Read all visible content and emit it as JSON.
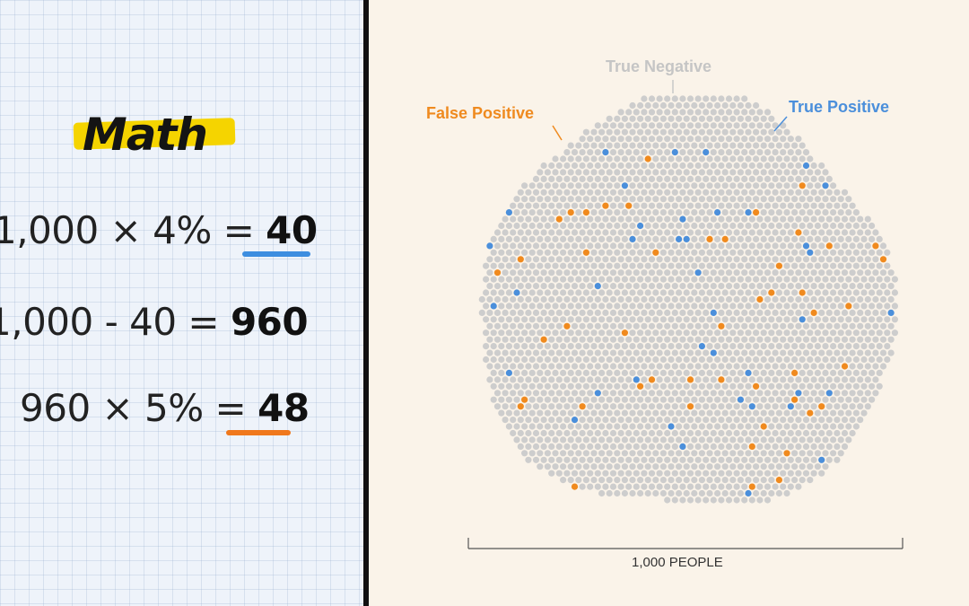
{
  "math": {
    "title": "Math",
    "eq1": {
      "expr": "1,000 × 4% = ",
      "answer": "40"
    },
    "eq2": {
      "expr": "1,000 - 40 = ",
      "answer": "960"
    },
    "eq3": {
      "expr": "960 × 5% = ",
      "answer": "48"
    }
  },
  "diagram": {
    "label_true_negative": "True Negative",
    "label_false_positive": "False Positive",
    "label_true_positive": "True Positive",
    "axis_label": "1,000 PEOPLE"
  },
  "colors": {
    "true_negative": "#cdcdcd",
    "false_positive": "#f08a1e",
    "true_positive": "#4b8fdb",
    "highlight": "#f5d400"
  }
}
